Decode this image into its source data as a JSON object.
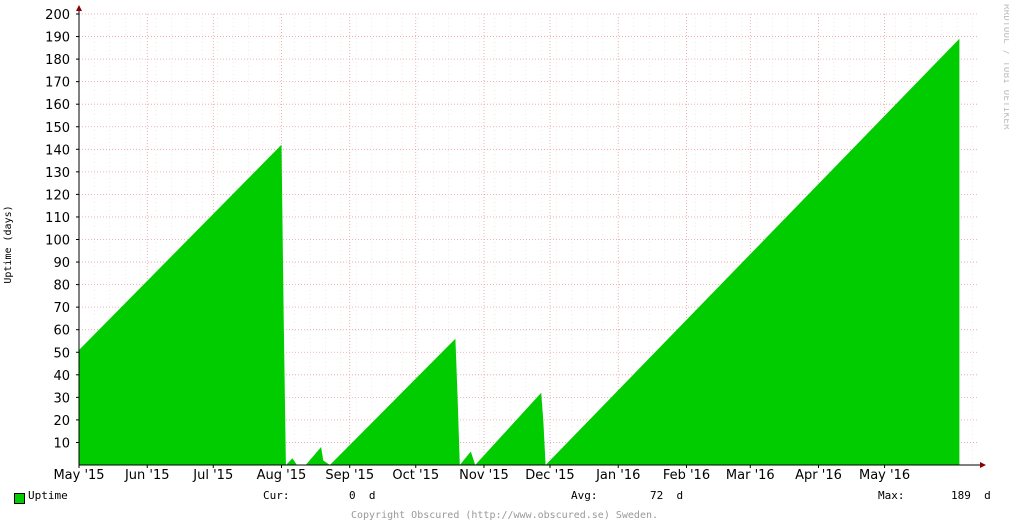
{
  "chart_data": {
    "type": "area",
    "title": "",
    "xlabel": "",
    "ylabel": "Uptime (days)",
    "ylim": [
      0,
      200
    ],
    "yticks": [
      "10",
      "20",
      "30",
      "40",
      "50",
      "60",
      "70",
      "80",
      "90",
      "100",
      "110",
      "120",
      "130",
      "140",
      "150",
      "160",
      "170",
      "180",
      "190",
      "200"
    ],
    "xticks": [
      "May '15",
      "Jun '15",
      "Jul '15",
      "Aug '15",
      "Sep '15",
      "Oct '15",
      "Nov '15",
      "Dec '15",
      "Jan '16",
      "Feb '16",
      "Mar '16",
      "Apr '16",
      "May '16"
    ],
    "xlim": [
      "2015-05-01",
      "2016-06-12"
    ],
    "grid": true,
    "series": [
      {
        "name": "Uptime",
        "color": "#00cc00",
        "points": [
          [
            "2015-05-01",
            51
          ],
          [
            "2015-08-01",
            142
          ],
          [
            "2015-08-02",
            65
          ],
          [
            "2015-08-03",
            0
          ],
          [
            "2015-08-06",
            3
          ],
          [
            "2015-08-08",
            0
          ],
          [
            "2015-08-12",
            0
          ],
          [
            "2015-08-19",
            8
          ],
          [
            "2015-08-20",
            2
          ],
          [
            "2015-08-23",
            0
          ],
          [
            "2015-10-19",
            56
          ],
          [
            "2015-10-20",
            30
          ],
          [
            "2015-10-21",
            0
          ],
          [
            "2015-10-26",
            6
          ],
          [
            "2015-10-28",
            0
          ],
          [
            "2015-11-27",
            32
          ],
          [
            "2015-11-28",
            19
          ],
          [
            "2015-11-29",
            0
          ],
          [
            "2016-06-04",
            189
          ],
          [
            "2016-06-04",
            0
          ]
        ]
      }
    ]
  },
  "legend": {
    "series_label": "Uptime",
    "cur_label": "Cur:",
    "cur_value": "0  d",
    "avg_label": "Avg:",
    "avg_value": "72  d",
    "max_label": "Max:",
    "max_value": "189  d"
  },
  "side_label": "RRDTOOL / TOBI OETIKER",
  "copyright": "Copyright Obscured (http://www.obscured.se) Sweden."
}
